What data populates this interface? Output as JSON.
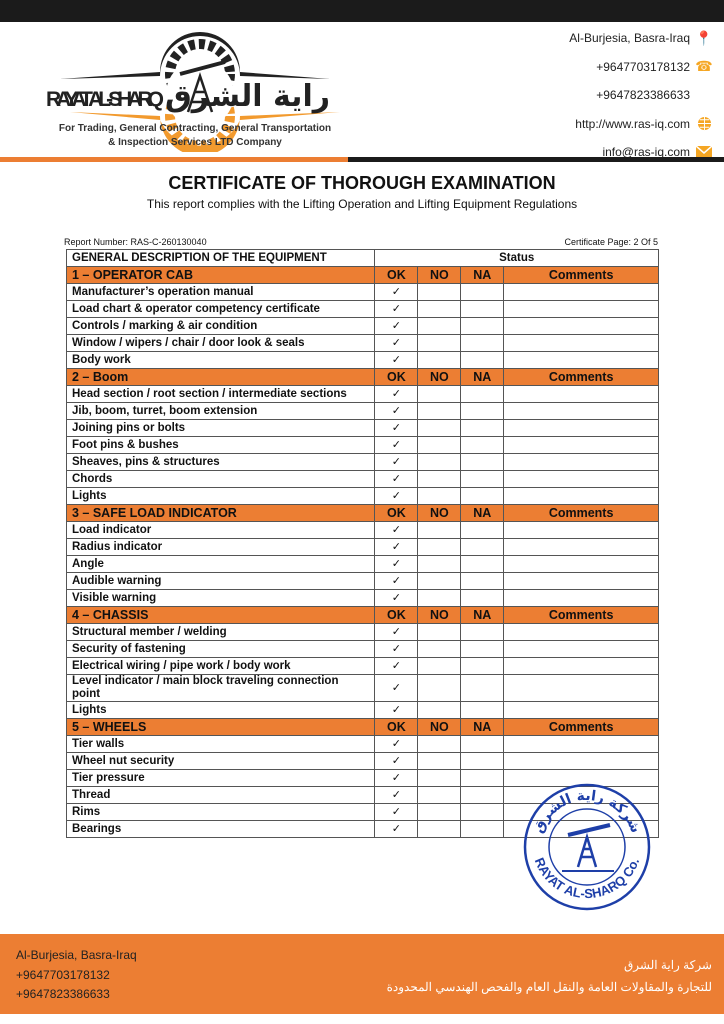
{
  "header": {
    "logo_text_en": "RAYAT AL-SHARQ",
    "logo_text_ar": "راية الشرق",
    "tagline_1": "For Trading, General Contracting, General Transportation",
    "tagline_2": "& Inspection Services LTD Company",
    "contacts": [
      {
        "text": "Al-Burjesia, Basra-Iraq",
        "icon": "location-pin-icon"
      },
      {
        "text": "+9647703178132",
        "icon": "phone-icon"
      },
      {
        "text": "+9647823386633",
        "icon": ""
      },
      {
        "text": "http://www.ras-iq.com",
        "icon": "globe-icon"
      },
      {
        "text": "info@ras-iq.com",
        "icon": "mail-icon"
      }
    ]
  },
  "title": "CERTIFICATE OF THOROUGH EXAMINATION",
  "subtitle": "This report complies with the Lifting Operation and Lifting Equipment Regulations",
  "report_number": "Report Number: RAS-C-260130040",
  "certificate_page": "Certificate Page: 2 Of 5",
  "table": {
    "desc_header": "GENERAL DESCRIPTION OF THE EQUIPMENT",
    "status_header": "Status",
    "col_ok": "OK",
    "col_no": "NO",
    "col_na": "NA",
    "col_comments": "Comments",
    "check": "✓",
    "sections": [
      {
        "title": "1 – OPERATOR CAB",
        "items": [
          "Manufacturer’s operation manual",
          "Load chart & operator competency certificate",
          "Controls / marking & air condition",
          "Window / wipers / chair / door look & seals",
          "Body work"
        ]
      },
      {
        "title": "2 – Boom",
        "items": [
          "Head section / root section / intermediate sections",
          "Jib, boom, turret, boom extension",
          "Joining pins or bolts",
          "Foot pins & bushes",
          "Sheaves, pins & structures",
          "Chords",
          "Lights"
        ]
      },
      {
        "title": "3 – SAFE LOAD INDICATOR",
        "items": [
          "Load indicator",
          "Radius indicator",
          "Angle",
          "Audible warning",
          "Visible warning"
        ]
      },
      {
        "title": "4 – CHASSIS",
        "items": [
          "Structural member / welding",
          "Security of fastening",
          "Electrical wiring / pipe work / body work",
          "Level indicator / main block traveling connection point",
          "Lights"
        ]
      },
      {
        "title": "5 – WHEELS",
        "items": [
          "Tier walls",
          "Wheel nut security",
          "Tier pressure",
          "Thread",
          "Rims",
          "Bearings"
        ]
      }
    ]
  },
  "stamp": {
    "text_top": "شركة راية الشرق",
    "text_bottom": "RAYAT AL-SHARQ Co.",
    "color": "#1e3fa8"
  },
  "footer": {
    "address": "Al-Burjesia, Basra-Iraq",
    "phone1": "+9647703178132",
    "phone2": "+9647823386633",
    "ar_line1": "شركة راية الشرق",
    "ar_line2": "للتجارة والمقاولات العامة والنقل العام والفحص الهندسي المحدودة"
  },
  "colors": {
    "accent": "#ec7e33",
    "dark": "#1b1b1b"
  }
}
